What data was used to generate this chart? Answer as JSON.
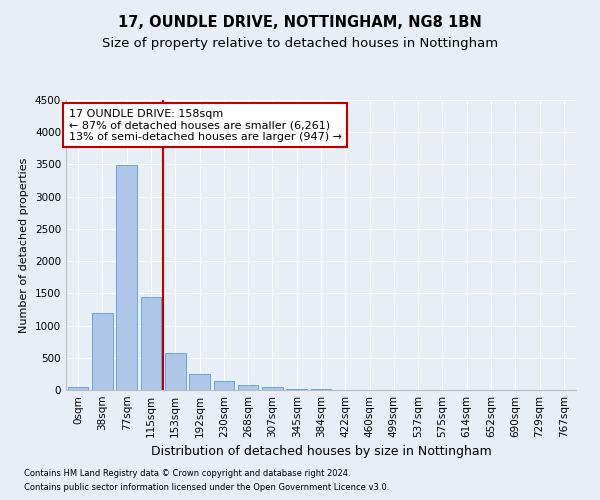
{
  "title": "17, OUNDLE DRIVE, NOTTINGHAM, NG8 1BN",
  "subtitle": "Size of property relative to detached houses in Nottingham",
  "xlabel": "Distribution of detached houses by size in Nottingham",
  "ylabel": "Number of detached properties",
  "footnote1": "Contains HM Land Registry data © Crown copyright and database right 2024.",
  "footnote2": "Contains public sector information licensed under the Open Government Licence v3.0.",
  "bar_labels": [
    "0sqm",
    "38sqm",
    "77sqm",
    "115sqm",
    "153sqm",
    "192sqm",
    "230sqm",
    "268sqm",
    "307sqm",
    "345sqm",
    "384sqm",
    "422sqm",
    "460sqm",
    "499sqm",
    "537sqm",
    "575sqm",
    "614sqm",
    "652sqm",
    "690sqm",
    "729sqm",
    "767sqm"
  ],
  "bar_values": [
    50,
    1200,
    3490,
    1450,
    570,
    250,
    140,
    85,
    45,
    20,
    8,
    4,
    2,
    1,
    0,
    0,
    0,
    0,
    0,
    0,
    0
  ],
  "bar_color": "#aec6e8",
  "bar_edge_color": "#5b9bd5",
  "vline_x": 3.5,
  "vline_color": "#c00000",
  "annotation_line1": "17 OUNDLE DRIVE: 158sqm",
  "annotation_line2": "← 87% of detached houses are smaller (6,261)",
  "annotation_line3": "13% of semi-detached houses are larger (947) →",
  "ylim_min": 0,
  "ylim_max": 4500,
  "yticks": [
    0,
    500,
    1000,
    1500,
    2000,
    2500,
    3000,
    3500,
    4000,
    4500
  ],
  "bg_color": "#e8eef5",
  "title_fontsize": 10.5,
  "subtitle_fontsize": 9.5,
  "ylabel_fontsize": 8,
  "xlabel_fontsize": 9,
  "tick_fontsize": 7.5,
  "annotation_fontsize": 8
}
